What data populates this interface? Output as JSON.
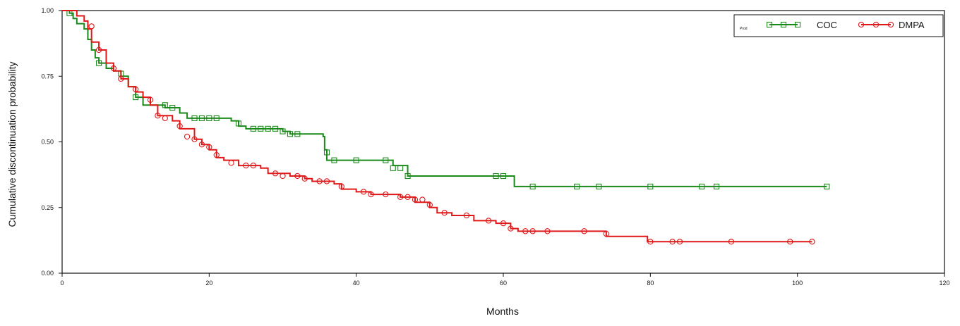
{
  "chart_data": {
    "type": "line",
    "title": "",
    "xlabel": "Months",
    "ylabel": "Cumulative discontinuation probability",
    "xlim": [
      0,
      120
    ],
    "ylim": [
      0,
      1
    ],
    "x_ticks": [
      0,
      20,
      40,
      60,
      80,
      100,
      120
    ],
    "x_tick_labels": [
      "0",
      "20",
      "40",
      "60",
      "80",
      "100",
      "120"
    ],
    "y_ticks": [
      0,
      0.25,
      0.5,
      0.75,
      1
    ],
    "y_tick_labels": [
      "0.00",
      "0.25",
      "0.50",
      "0.75",
      "1.00"
    ],
    "grid": false,
    "legend": {
      "position": "top-right",
      "prefix": "Prod"
    },
    "step": true,
    "series": [
      {
        "name": "COC",
        "color": "#1a8a1a",
        "marker": "square",
        "points": [
          [
            0,
            1.0
          ],
          [
            1,
            0.99
          ],
          [
            1.5,
            0.97
          ],
          [
            2,
            0.95
          ],
          [
            3,
            0.93
          ],
          [
            3.5,
            0.89
          ],
          [
            4,
            0.85
          ],
          [
            4.5,
            0.82
          ],
          [
            5,
            0.8
          ],
          [
            6,
            0.78
          ],
          [
            7,
            0.77
          ],
          [
            8,
            0.75
          ],
          [
            9,
            0.71
          ],
          [
            10,
            0.67
          ],
          [
            11,
            0.64
          ],
          [
            12,
            0.64
          ],
          [
            14,
            0.63
          ],
          [
            16,
            0.61
          ],
          [
            17,
            0.59
          ],
          [
            23,
            0.58
          ],
          [
            24,
            0.56
          ],
          [
            25,
            0.55
          ],
          [
            30,
            0.54
          ],
          [
            31,
            0.53
          ],
          [
            35.5,
            0.52
          ],
          [
            35.7,
            0.47
          ],
          [
            36,
            0.43
          ],
          [
            44,
            0.43
          ],
          [
            45,
            0.41
          ],
          [
            47,
            0.37
          ],
          [
            61,
            0.37
          ],
          [
            61.5,
            0.33
          ],
          [
            104,
            0.33
          ]
        ],
        "censored": [
          [
            1,
            0.99
          ],
          [
            5,
            0.8
          ],
          [
            8,
            0.76
          ],
          [
            10,
            0.67
          ],
          [
            14,
            0.64
          ],
          [
            15,
            0.63
          ],
          [
            18,
            0.59
          ],
          [
            19,
            0.59
          ],
          [
            20,
            0.59
          ],
          [
            21,
            0.59
          ],
          [
            24,
            0.57
          ],
          [
            26,
            0.55
          ],
          [
            27,
            0.55
          ],
          [
            28,
            0.55
          ],
          [
            29,
            0.55
          ],
          [
            30,
            0.54
          ],
          [
            31,
            0.53
          ],
          [
            32,
            0.53
          ],
          [
            36,
            0.46
          ],
          [
            37,
            0.43
          ],
          [
            40,
            0.43
          ],
          [
            44,
            0.43
          ],
          [
            45,
            0.4
          ],
          [
            46,
            0.4
          ],
          [
            47,
            0.37
          ],
          [
            59,
            0.37
          ],
          [
            60,
            0.37
          ],
          [
            64,
            0.33
          ],
          [
            70,
            0.33
          ],
          [
            73,
            0.33
          ],
          [
            80,
            0.33
          ],
          [
            87,
            0.33
          ],
          [
            89,
            0.33
          ],
          [
            104,
            0.33
          ]
        ]
      },
      {
        "name": "DMPA",
        "color": "#e01818",
        "marker": "circle",
        "points": [
          [
            0,
            1.0
          ],
          [
            2,
            0.98
          ],
          [
            3,
            0.96
          ],
          [
            3.5,
            0.93
          ],
          [
            4,
            0.88
          ],
          [
            5,
            0.85
          ],
          [
            6,
            0.8
          ],
          [
            7,
            0.77
          ],
          [
            8,
            0.74
          ],
          [
            9,
            0.71
          ],
          [
            10,
            0.69
          ],
          [
            11,
            0.67
          ],
          [
            12,
            0.64
          ],
          [
            13,
            0.6
          ],
          [
            15,
            0.58
          ],
          [
            16,
            0.55
          ],
          [
            18,
            0.51
          ],
          [
            19,
            0.49
          ],
          [
            20,
            0.47
          ],
          [
            21,
            0.44
          ],
          [
            22,
            0.43
          ],
          [
            24,
            0.41
          ],
          [
            27,
            0.4
          ],
          [
            28,
            0.38
          ],
          [
            31,
            0.37
          ],
          [
            33,
            0.36
          ],
          [
            34,
            0.35
          ],
          [
            37,
            0.34
          ],
          [
            38,
            0.32
          ],
          [
            40,
            0.31
          ],
          [
            42,
            0.3
          ],
          [
            46,
            0.29
          ],
          [
            48,
            0.27
          ],
          [
            50,
            0.25
          ],
          [
            51,
            0.23
          ],
          [
            53,
            0.22
          ],
          [
            56,
            0.2
          ],
          [
            59,
            0.19
          ],
          [
            61,
            0.17
          ],
          [
            62,
            0.16
          ],
          [
            72,
            0.16
          ],
          [
            74,
            0.14
          ],
          [
            79,
            0.14
          ],
          [
            79.6,
            0.12
          ],
          [
            102,
            0.12
          ]
        ],
        "censored": [
          [
            4,
            0.94
          ],
          [
            5,
            0.85
          ],
          [
            7,
            0.78
          ],
          [
            8,
            0.74
          ],
          [
            10,
            0.7
          ],
          [
            12,
            0.66
          ],
          [
            13,
            0.6
          ],
          [
            14,
            0.59
          ],
          [
            16,
            0.56
          ],
          [
            17,
            0.52
          ],
          [
            18,
            0.51
          ],
          [
            19,
            0.49
          ],
          [
            20,
            0.48
          ],
          [
            21,
            0.45
          ],
          [
            23,
            0.42
          ],
          [
            25,
            0.41
          ],
          [
            26,
            0.41
          ],
          [
            29,
            0.38
          ],
          [
            30,
            0.37
          ],
          [
            32,
            0.37
          ],
          [
            33,
            0.36
          ],
          [
            35,
            0.35
          ],
          [
            36,
            0.35
          ],
          [
            38,
            0.33
          ],
          [
            41,
            0.31
          ],
          [
            42,
            0.3
          ],
          [
            44,
            0.3
          ],
          [
            46,
            0.29
          ],
          [
            47,
            0.29
          ],
          [
            48,
            0.28
          ],
          [
            49,
            0.28
          ],
          [
            50,
            0.26
          ],
          [
            52,
            0.23
          ],
          [
            55,
            0.22
          ],
          [
            58,
            0.2
          ],
          [
            60,
            0.19
          ],
          [
            61,
            0.17
          ],
          [
            63,
            0.16
          ],
          [
            64,
            0.16
          ],
          [
            66,
            0.16
          ],
          [
            71,
            0.16
          ],
          [
            74,
            0.15
          ],
          [
            80,
            0.12
          ],
          [
            83,
            0.12
          ],
          [
            84,
            0.12
          ],
          [
            91,
            0.12
          ],
          [
            99,
            0.12
          ],
          [
            102,
            0.12
          ]
        ]
      }
    ]
  }
}
